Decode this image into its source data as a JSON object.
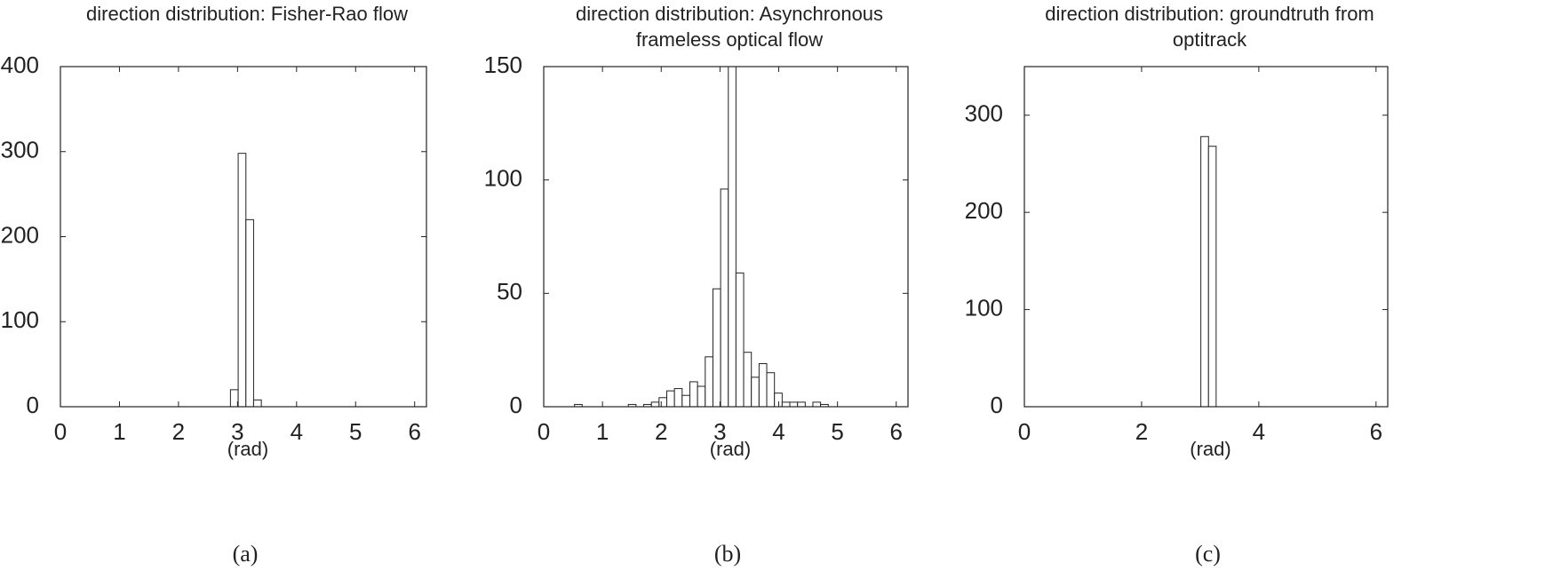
{
  "chart_data": [
    {
      "type": "histogram",
      "title": "direction distribution: Fisher-Rao flow",
      "xlabel": "(rad)",
      "caption": "(a)",
      "bins": [
        2.88,
        3.011,
        3.142,
        3.272,
        3.403
      ],
      "counts": [
        20,
        298,
        220,
        8
      ],
      "color": "#ffffff",
      "xlim": [
        0,
        6.2
      ],
      "ylim": [
        0,
        400
      ],
      "xticks": [
        0,
        1,
        2,
        3,
        4,
        5,
        6
      ],
      "yticks": [
        0,
        100,
        200,
        300,
        400
      ]
    },
    {
      "type": "histogram",
      "title": "direction distribution: Asynchronous frameless optical flow",
      "xlabel": "(rad)",
      "caption": "(b)",
      "bins": [
        0.524,
        0.654,
        0.785,
        0.916,
        1.047,
        1.178,
        1.309,
        1.44,
        1.571,
        1.702,
        1.833,
        1.963,
        2.094,
        2.225,
        2.356,
        2.487,
        2.618,
        2.749,
        2.88,
        3.011,
        3.142,
        3.272,
        3.403,
        3.534,
        3.665,
        3.796,
        3.927,
        4.058,
        4.189,
        4.32,
        4.451,
        4.581,
        4.712,
        4.843,
        4.974
      ],
      "counts": [
        1,
        0,
        0,
        0,
        0,
        0,
        0,
        1,
        0,
        1,
        2,
        4,
        7,
        8,
        5,
        11,
        9,
        22,
        52,
        96,
        150,
        59,
        24,
        13,
        19,
        15,
        6,
        2,
        2,
        2,
        0,
        2,
        1,
        0
      ],
      "color": "#ffffff",
      "xlim": [
        0,
        6.2
      ],
      "ylim": [
        0,
        150
      ],
      "xticks": [
        0,
        1,
        2,
        3,
        4,
        5,
        6
      ],
      "yticks": [
        0,
        50,
        100,
        150
      ]
    },
    {
      "type": "histogram",
      "title": "direction distribution: groundtruth from optitrack",
      "xlabel": "(rad)",
      "caption": "(c)",
      "bins": [
        3.011,
        3.142,
        3.272
      ],
      "counts": [
        278,
        268
      ],
      "color": "#ffffff",
      "xlim": [
        0,
        6.2
      ],
      "ylim": [
        0,
        350
      ],
      "xticks": [
        0,
        2,
        4,
        6
      ],
      "yticks": [
        0,
        100,
        200,
        300
      ]
    }
  ]
}
